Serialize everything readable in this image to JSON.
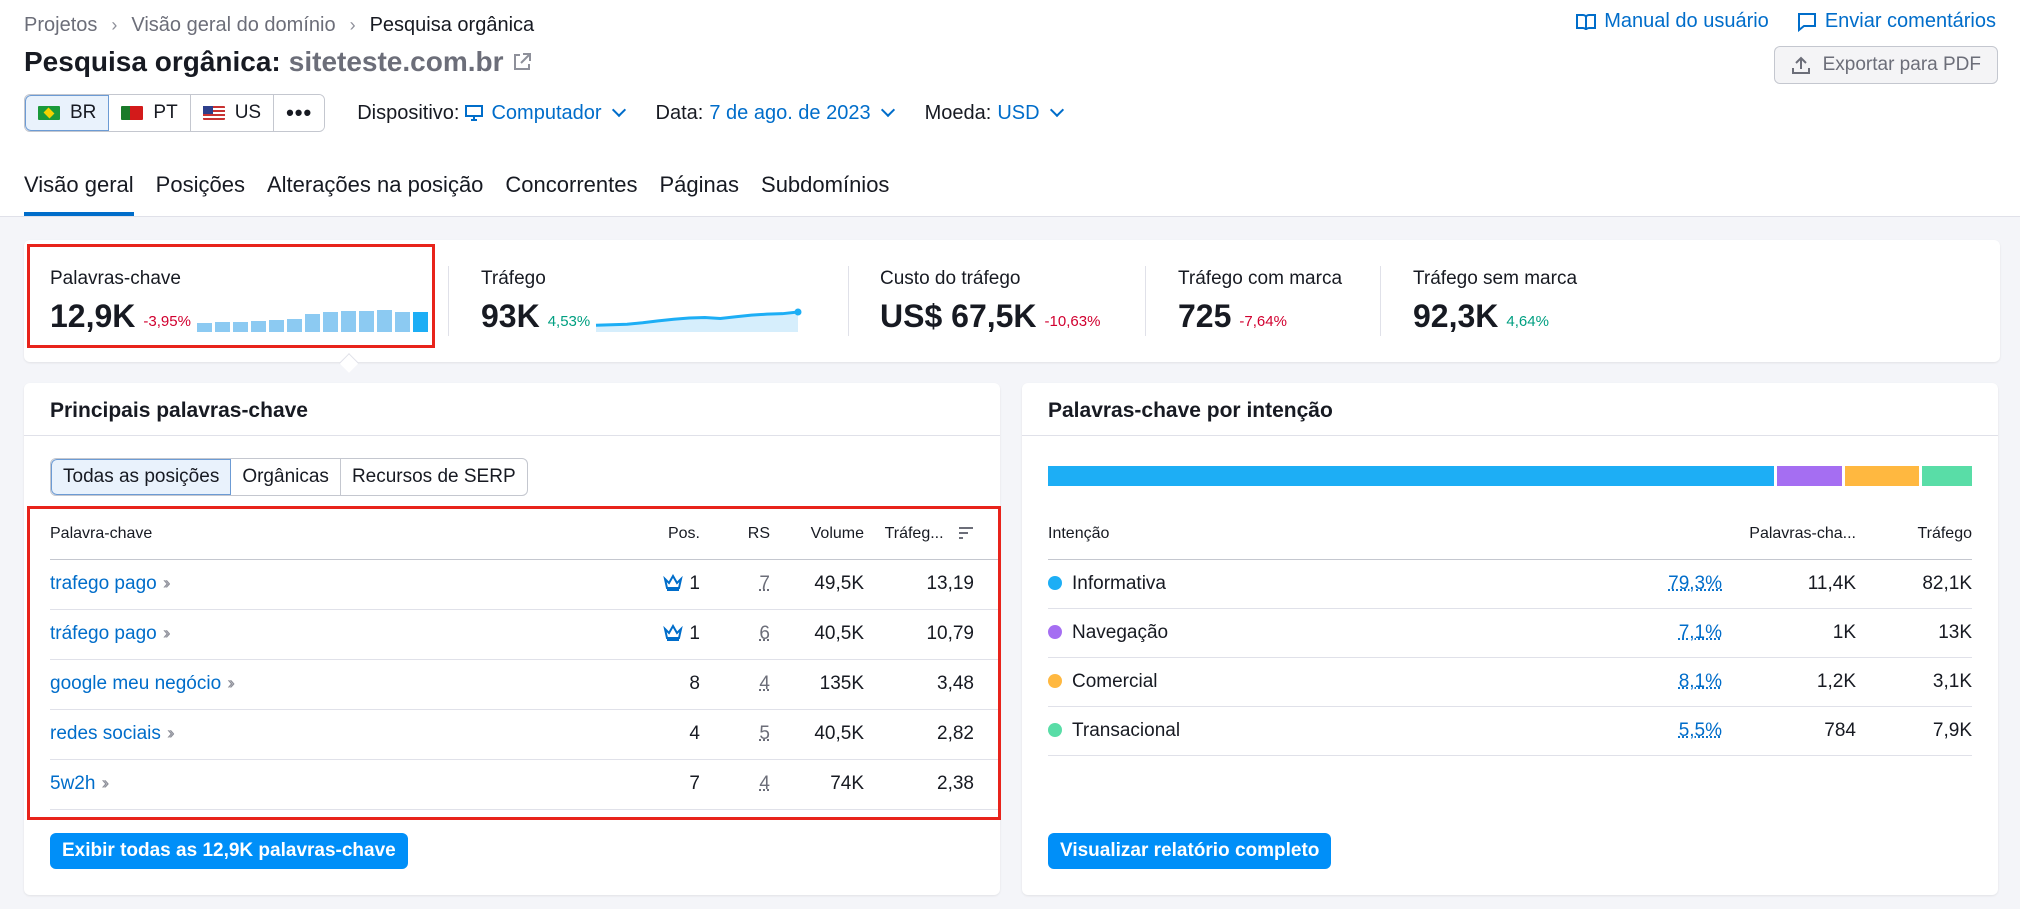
{
  "breadcrumb": [
    "Projetos",
    "Visão geral do domínio",
    "Pesquisa orgânica"
  ],
  "top_links": {
    "manual": "Manual do usuário",
    "feedback": "Enviar comentários"
  },
  "title": {
    "prefix": "Pesquisa orgânica:",
    "domain": "siteteste.com.br"
  },
  "export_label": "Exportar para PDF",
  "databases": [
    {
      "code": "BR",
      "flag": "brazil-flag-icon",
      "active": true
    },
    {
      "code": "PT",
      "flag": "portugal-flag-icon",
      "active": false
    },
    {
      "code": "US",
      "flag": "usa-flag-icon",
      "active": false
    }
  ],
  "more_label": "•••",
  "filters": {
    "device_label": "Dispositivo:",
    "device_value": "Computador",
    "date_label": "Data:",
    "date_value": "7 de ago. de 2023",
    "currency_label": "Moeda:",
    "currency_value": "USD"
  },
  "tabs": [
    "Visão geral",
    "Posições",
    "Alterações na posição",
    "Concorrentes",
    "Páginas",
    "Subdomínios"
  ],
  "metrics": [
    {
      "label": "Palavras-chave",
      "value": "12,9K",
      "delta": "-3,95%",
      "dir": "neg"
    },
    {
      "label": "Tráfego",
      "value": "93K",
      "delta": "4,53%",
      "dir": "pos"
    },
    {
      "label": "Custo do tráfego",
      "value": "US$ 67,5K",
      "delta": "-10,63%",
      "dir": "neg"
    },
    {
      "label": "Tráfego com marca",
      "value": "725",
      "delta": "-7,64%",
      "dir": "neg"
    },
    {
      "label": "Tráfego sem marca",
      "value": "92,3K",
      "delta": "4,64%",
      "dir": "pos"
    }
  ],
  "keywords_trend": [
    0.3,
    0.32,
    0.34,
    0.36,
    0.4,
    0.44,
    0.6,
    0.65,
    0.7,
    0.7,
    0.72,
    0.68,
    0.66
  ],
  "traffic_trend": [
    0.2,
    0.22,
    0.24,
    0.3,
    0.38,
    0.45,
    0.5,
    0.52,
    0.48,
    0.55,
    0.62,
    0.66,
    0.68,
    0.75
  ],
  "top_keywords": {
    "title": "Principais palavras-chave",
    "segments": [
      "Todas as posições",
      "Orgânicas",
      "Recursos de SERP"
    ],
    "headers": {
      "keyword": "Palavra-chave",
      "pos": "Pos.",
      "rs": "RS",
      "volume": "Volume",
      "traffic": "Tráfeg..."
    },
    "rows": [
      {
        "keyword": "trafego pago",
        "crown": true,
        "pos": "1",
        "rs": "7",
        "volume": "49,5K",
        "traffic": "13,19"
      },
      {
        "keyword": "tráfego pago",
        "crown": true,
        "pos": "1",
        "rs": "6",
        "volume": "40,5K",
        "traffic": "10,79"
      },
      {
        "keyword": "google meu negócio",
        "crown": false,
        "pos": "8",
        "rs": "4",
        "volume": "135K",
        "traffic": "3,48"
      },
      {
        "keyword": "redes sociais",
        "crown": false,
        "pos": "4",
        "rs": "5",
        "volume": "40,5K",
        "traffic": "2,82"
      },
      {
        "keyword": "5w2h",
        "crown": false,
        "pos": "7",
        "rs": "4",
        "volume": "74K",
        "traffic": "2,38"
      }
    ],
    "cta": "Exibir todas as 12,9K palavras-chave"
  },
  "intent": {
    "title": "Palavras-chave por intenção",
    "headers": {
      "intent": "Intenção",
      "keywords": "Palavras-cha...",
      "traffic": "Tráfego"
    },
    "rows": [
      {
        "name": "Informativa",
        "color": "#1daef5",
        "pct": "79,3%",
        "share": 79.3,
        "keywords": "11,4K",
        "traffic": "82,1K"
      },
      {
        "name": "Navegação",
        "color": "#a56ef2",
        "pct": "7,1%",
        "share": 7.1,
        "keywords": "1K",
        "traffic": "13K"
      },
      {
        "name": "Comercial",
        "color": "#ffb840",
        "pct": "8,1%",
        "share": 8.1,
        "keywords": "1,2K",
        "traffic": "3,1K"
      },
      {
        "name": "Transacional",
        "color": "#59dda7",
        "pct": "5,5%",
        "share": 5.5,
        "keywords": "784",
        "traffic": "7,9K"
      }
    ],
    "cta": "Visualizar relatório completo"
  }
}
